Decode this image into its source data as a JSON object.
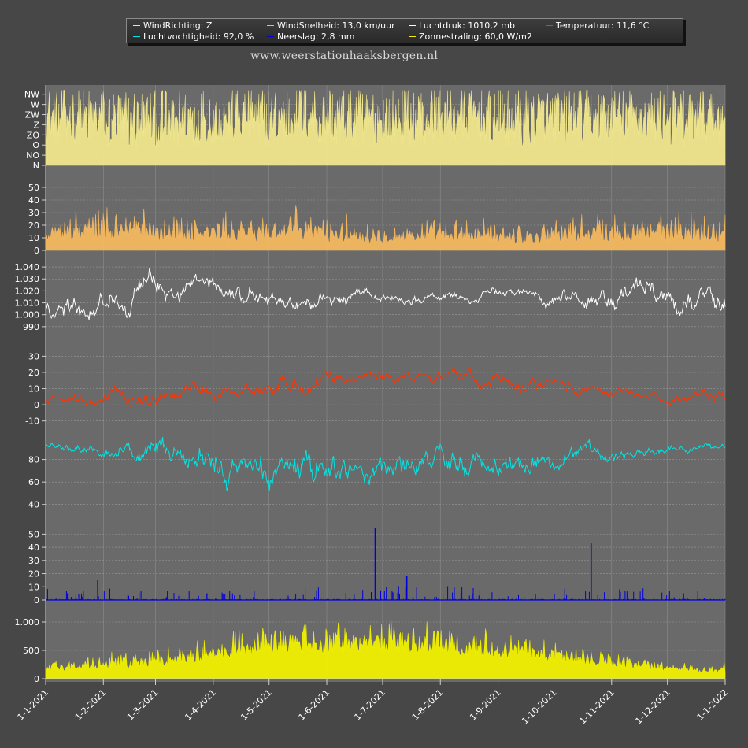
{
  "watermark": "www.weerstationhaaksbergen.nl",
  "legend": [
    {
      "label": "WindRichting: Z",
      "color": "#f0e68c"
    },
    {
      "label": "WindSnelheid: 13,0 km/uur",
      "color": "#f4b860"
    },
    {
      "label": "Luchtdruk: 1010,2 mb",
      "color": "#ffffff"
    },
    {
      "label": "Temperatuur: 11,6 °C",
      "color": "#ff3300"
    },
    {
      "label": "Luchtvochtigheid: 92,0 %",
      "color": "#00e5e5"
    },
    {
      "label": "Neerslag: 2,8 mm",
      "color": "#0000dd"
    },
    {
      "label": "Zonnestraling: 60,0 W/m2",
      "color": "#f0f000"
    }
  ],
  "chart_data": {
    "type": "line",
    "x_range": [
      "2021-01-01",
      "2022-01-01"
    ],
    "x_ticks": [
      "1-1-2021",
      "1-2-2021",
      "1-3-2021",
      "1-4-2021",
      "1-5-2021",
      "1-6-2021",
      "1-7-2021",
      "1-8-2021",
      "1-9-2021",
      "1-10-2021",
      "1-11-2021",
      "1-12-2021",
      "1-1-2022"
    ],
    "grid": true,
    "panels": [
      {
        "name": "WindRichting",
        "color": "#f0e68c",
        "style": "fill",
        "ylim": [
          0,
          7.6
        ],
        "y_ticks": [
          {
            "v": 0,
            "label": "N"
          },
          {
            "v": 1,
            "label": "NO"
          },
          {
            "v": 2,
            "label": "O"
          },
          {
            "v": 3,
            "label": "ZO"
          },
          {
            "v": 4,
            "label": "Z"
          },
          {
            "v": 5,
            "label": "ZW"
          },
          {
            "v": 6,
            "label": "W"
          },
          {
            "v": 7,
            "label": "NW"
          }
        ],
        "monthly_mean": [
          4.9,
          4.5,
          5.0,
          4.8,
          5.2,
          4.8,
          4.9,
          5.1,
          4.6,
          4.9,
          4.8,
          4.9
        ],
        "monthly_spread": [
          2.6,
          2.9,
          2.5,
          2.8,
          2.9,
          2.7,
          2.6,
          2.8,
          2.9,
          2.5,
          2.6,
          2.7
        ]
      },
      {
        "name": "WindSnelheid",
        "color": "#f4b860",
        "style": "fill",
        "ylim": [
          0,
          60
        ],
        "y_ticks": [
          {
            "v": 0,
            "label": "0"
          },
          {
            "v": 10,
            "label": "10"
          },
          {
            "v": 20,
            "label": "20"
          },
          {
            "v": 30,
            "label": "30"
          },
          {
            "v": 40,
            "label": "40"
          },
          {
            "v": 50,
            "label": "50"
          }
        ],
        "monthly_mean": [
          13,
          14,
          13,
          12,
          14,
          11,
          11,
          11,
          10,
          12,
          12,
          13
        ],
        "monthly_spread": [
          11,
          13,
          10,
          10,
          12,
          9,
          8,
          9,
          8,
          11,
          11,
          11
        ]
      },
      {
        "name": "Luchtdruk",
        "color": "#ffffff",
        "style": "line",
        "ylim": [
          980,
          1046
        ],
        "y_ticks": [
          {
            "v": 990,
            "label": "990"
          },
          {
            "v": 1000,
            "label": "1.000"
          },
          {
            "v": 1010,
            "label": "1.010"
          },
          {
            "v": 1020,
            "label": "1.020"
          },
          {
            "v": 1030,
            "label": "1.030"
          },
          {
            "v": 1040,
            "label": "1.040"
          }
        ],
        "monthly_mean": [
          1008,
          1020,
          1021,
          1017,
          1008,
          1015,
          1014,
          1014,
          1019,
          1014,
          1018,
          1013
        ],
        "monthly_spread": [
          12,
          13,
          10,
          9,
          8,
          6,
          5,
          5,
          6,
          10,
          12,
          13
        ]
      },
      {
        "name": "Temperatuur",
        "color": "#ff3300",
        "style": "line",
        "ylim": [
          -15,
          36
        ],
        "y_ticks": [
          {
            "v": -10,
            "label": "-10"
          },
          {
            "v": 0,
            "label": "0"
          },
          {
            "v": 10,
            "label": "10"
          },
          {
            "v": 20,
            "label": "20"
          },
          {
            "v": 30,
            "label": "30"
          }
        ],
        "monthly_mean": [
          2.5,
          4,
          8,
          9,
          11,
          17,
          18,
          17,
          16,
          11,
          6,
          4
        ],
        "monthly_spread": [
          4,
          7,
          7,
          7,
          6,
          6,
          5,
          5,
          5,
          5,
          4,
          4
        ]
      },
      {
        "name": "Luchtvochtigheid",
        "color": "#00e5e5",
        "style": "line",
        "ylim": [
          30,
          100
        ],
        "y_ticks": [
          {
            "v": 40,
            "label": "40"
          },
          {
            "v": 60,
            "label": "60"
          },
          {
            "v": 80,
            "label": "80"
          }
        ],
        "monthly_mean": [
          91,
          85,
          75,
          68,
          72,
          72,
          75,
          77,
          80,
          85,
          89,
          91
        ],
        "monthly_spread": [
          4,
          10,
          14,
          17,
          16,
          16,
          14,
          13,
          12,
          10,
          5,
          4
        ]
      },
      {
        "name": "Neerslag",
        "color": "#0000dd",
        "style": "spikes",
        "ylim": [
          0,
          58
        ],
        "y_ticks": [
          {
            "v": 0,
            "label": "0"
          },
          {
            "v": 10,
            "label": "10"
          },
          {
            "v": 20,
            "label": "20"
          },
          {
            "v": 30,
            "label": "30"
          },
          {
            "v": 40,
            "label": "40"
          },
          {
            "v": 50,
            "label": "50"
          }
        ],
        "monthly_mean": [
          3,
          3,
          2,
          2,
          3,
          3,
          4,
          3,
          2,
          3,
          3,
          2
        ],
        "monthly_spread": [
          4,
          4,
          3,
          3,
          5,
          4,
          5,
          4,
          3,
          4,
          4,
          3
        ],
        "peaks": [
          {
            "date": "2021-06-27",
            "value": 55
          },
          {
            "date": "2021-10-21",
            "value": 43
          },
          {
            "date": "2021-07-14",
            "value": 18
          },
          {
            "date": "2021-01-29",
            "value": 15
          }
        ]
      },
      {
        "name": "Zonnestraling",
        "color": "#f0f000",
        "style": "fill",
        "ylim": [
          0,
          1250
        ],
        "y_ticks": [
          {
            "v": 0,
            "label": "0"
          },
          {
            "v": 500,
            "label": "500"
          },
          {
            "v": 1000,
            "label": "1.000"
          }
        ],
        "monthly_mean": [
          250,
          350,
          500,
          750,
          850,
          900,
          850,
          800,
          650,
          450,
          300,
          200
        ],
        "monthly_spread": [
          100,
          150,
          200,
          250,
          250,
          250,
          250,
          250,
          200,
          150,
          100,
          80
        ]
      }
    ]
  }
}
